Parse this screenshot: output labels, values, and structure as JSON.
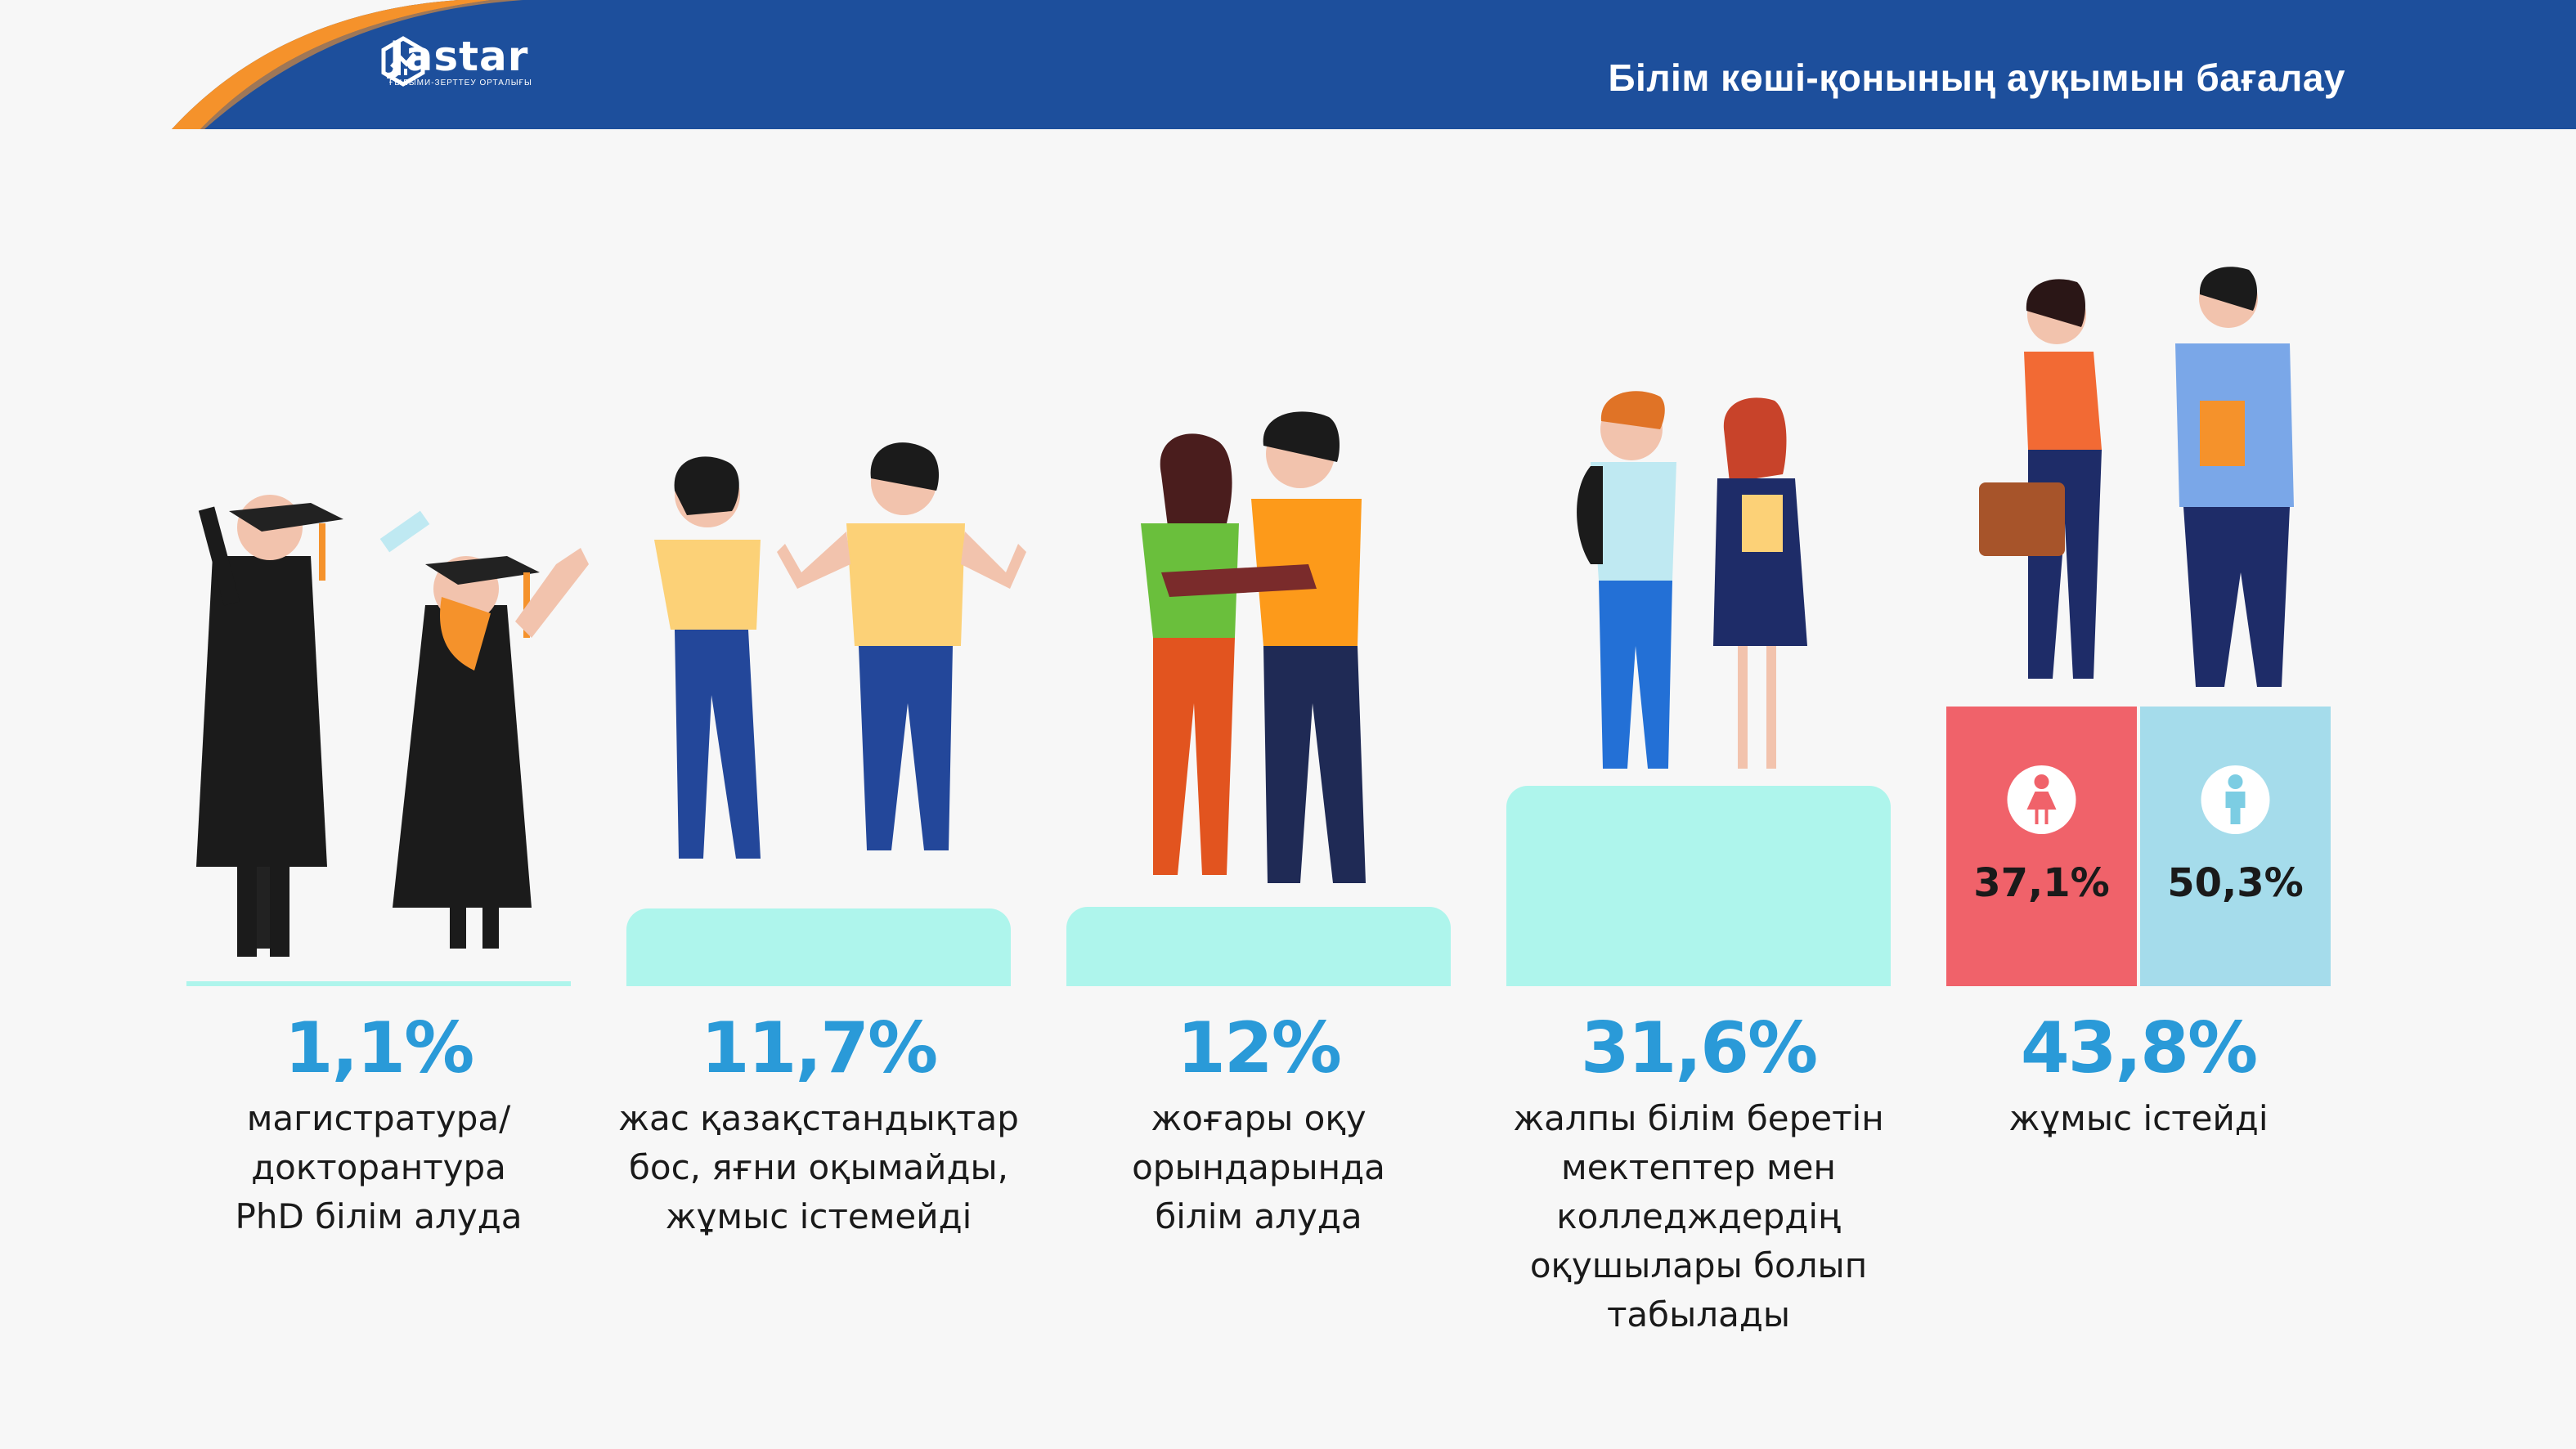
{
  "header": {
    "logo_word": "Jastar",
    "logo_sub": "ҒЫЛЫМИ-ЗЕРТТЕУ ОРТАЛЫҒЫ",
    "title": "Білім көші-қонының ауқымын бағалау"
  },
  "colors": {
    "header_blue": "#1d4f9c",
    "accent_orange": "#f5922b",
    "pedestal": "#aef5ec",
    "pct_blue": "#2a9ad8",
    "female": "#f0626a",
    "male": "#a5dceb"
  },
  "icons": [
    "graduates-illustration",
    "unemployed-youth-illustration",
    "university-students-illustration",
    "school-students-illustration",
    "working-people-illustration",
    "female-icon",
    "male-icon"
  ],
  "chart_data": {
    "type": "bar",
    "categories": [
      "магистратура/ докторантура PhD білім алуда",
      "жас қазақстандықтар бос, яғни оқымайды, жұмыс істемейді",
      "жоғары оқу орындарында білім алуда",
      "жалпы білім беретін мектептер мен колледждердің оқушылары болып табылады",
      "жұмыс істейді"
    ],
    "values": [
      1.1,
      11.7,
      12,
      31.6,
      43.8
    ],
    "unit": "%",
    "ylim": [
      0,
      50
    ],
    "bars": [
      {
        "value_label": "1,1%",
        "desc_lines": [
          "магистратура/",
          "докторантура",
          "PhD білім алуда"
        ]
      },
      {
        "value_label": "11,7%",
        "desc_lines": [
          "жас қазақстандықтар",
          "бос, яғни оқымайды,",
          "жұмыс істемейді"
        ]
      },
      {
        "value_label": "12%",
        "desc_lines": [
          "жоғары оқу",
          "орындарында",
          "білім алуда"
        ]
      },
      {
        "value_label": "31,6%",
        "desc_lines": [
          "жалпы білім беретін",
          "мектептер мен",
          "колледждердің",
          "оқушылары болып",
          "табылады"
        ]
      },
      {
        "value_label": "43,8%",
        "desc_lines": [
          "жұмыс істейді"
        ]
      }
    ],
    "gender_split": {
      "female": {
        "value": 37.1,
        "label": "37,1%"
      },
      "male": {
        "value": 50.3,
        "label": "50,3%"
      }
    }
  }
}
